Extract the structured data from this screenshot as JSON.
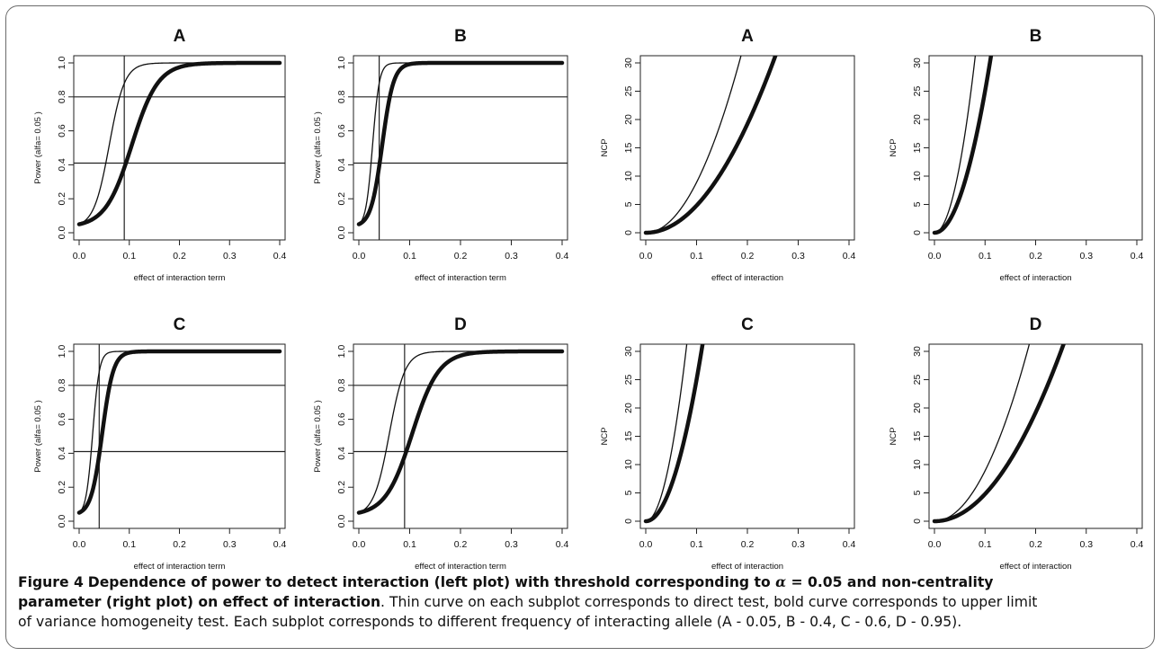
{
  "chart_data": [
    {
      "panel": "power-A",
      "type": "line",
      "title": "A",
      "xlabel": "effect of interaction term",
      "ylabel": "Power (alfa= 0.05 )",
      "xlim": [
        0,
        0.4
      ],
      "ylim": [
        0,
        1.0
      ],
      "xticks": [
        "0.0",
        "0.1",
        "0.2",
        "0.3",
        "0.4"
      ],
      "yticks": [
        "0.0",
        "0.2",
        "0.4",
        "0.6",
        "0.8",
        "1.0"
      ],
      "hlines": [
        0.8,
        0.41
      ],
      "vlines": [
        0.09
      ],
      "series": [
        {
          "style": "thin",
          "midpoint": 0.06,
          "steepness": 65,
          "baseline": 0.05
        },
        {
          "style": "bold",
          "midpoint": 0.105,
          "steepness": 38,
          "baseline": 0.05
        }
      ]
    },
    {
      "panel": "power-B",
      "type": "line",
      "title": "B",
      "xlabel": "effect of interaction term",
      "ylabel": "Power (alfa= 0.05 )",
      "xlim": [
        0,
        0.4
      ],
      "ylim": [
        0,
        1.0
      ],
      "xticks": [
        "0.0",
        "0.1",
        "0.2",
        "0.3",
        "0.4"
      ],
      "yticks": [
        "0.0",
        "0.2",
        "0.4",
        "0.6",
        "0.8",
        "1.0"
      ],
      "hlines": [
        0.8,
        0.41
      ],
      "vlines": [
        0.04
      ],
      "series": [
        {
          "style": "thin",
          "midpoint": 0.027,
          "steepness": 150,
          "baseline": 0.05
        },
        {
          "style": "bold",
          "midpoint": 0.046,
          "steepness": 90,
          "baseline": 0.05
        }
      ]
    },
    {
      "panel": "ncp-A",
      "type": "line",
      "title": "A",
      "xlabel": "effect of interaction",
      "ylabel": "NCP",
      "xlim": [
        0,
        0.4
      ],
      "ylim": [
        0,
        30
      ],
      "xticks": [
        "0.0",
        "0.1",
        "0.2",
        "0.3",
        "0.4"
      ],
      "yticks": [
        "0",
        "5",
        "10",
        "15",
        "20",
        "25",
        "30"
      ],
      "series": [
        {
          "style": "thin",
          "coef": 890
        },
        {
          "style": "bold",
          "coef": 480
        }
      ]
    },
    {
      "panel": "ncp-B",
      "type": "line",
      "title": "B",
      "xlabel": "effect of interaction",
      "ylabel": "NCP",
      "xlim": [
        0,
        0.4
      ],
      "ylim": [
        0,
        30
      ],
      "xticks": [
        "0.0",
        "0.1",
        "0.2",
        "0.3",
        "0.4"
      ],
      "yticks": [
        "0",
        "5",
        "10",
        "15",
        "20",
        "25",
        "30"
      ],
      "series": [
        {
          "style": "thin",
          "coef": 4800
        },
        {
          "style": "bold",
          "coef": 2500
        }
      ]
    },
    {
      "panel": "power-C",
      "type": "line",
      "title": "C",
      "xlabel": "effect of interaction term",
      "ylabel": "Power (alfa= 0.05 )",
      "xlim": [
        0,
        0.4
      ],
      "ylim": [
        0,
        1.0
      ],
      "xticks": [
        "0.0",
        "0.1",
        "0.2",
        "0.3",
        "0.4"
      ],
      "yticks": [
        "0.0",
        "0.2",
        "0.4",
        "0.6",
        "0.8",
        "1.0"
      ],
      "hlines": [
        0.8,
        0.41
      ],
      "vlines": [
        0.04
      ],
      "series": [
        {
          "style": "thin",
          "midpoint": 0.027,
          "steepness": 150,
          "baseline": 0.05
        },
        {
          "style": "bold",
          "midpoint": 0.046,
          "steepness": 90,
          "baseline": 0.05
        }
      ]
    },
    {
      "panel": "power-D",
      "type": "line",
      "title": "D",
      "xlabel": "effect of interaction term",
      "ylabel": "Power (alfa= 0.05 )",
      "xlim": [
        0,
        0.4
      ],
      "ylim": [
        0,
        1.0
      ],
      "xticks": [
        "0.0",
        "0.1",
        "0.2",
        "0.3",
        "0.4"
      ],
      "yticks": [
        "0.0",
        "0.2",
        "0.4",
        "0.6",
        "0.8",
        "1.0"
      ],
      "hlines": [
        0.8,
        0.41
      ],
      "vlines": [
        0.09
      ],
      "series": [
        {
          "style": "thin",
          "midpoint": 0.06,
          "steepness": 65,
          "baseline": 0.05
        },
        {
          "style": "bold",
          "midpoint": 0.105,
          "steepness": 38,
          "baseline": 0.05
        }
      ]
    },
    {
      "panel": "ncp-C",
      "type": "line",
      "title": "C",
      "xlabel": "effect of interaction",
      "ylabel": "NCP",
      "xlim": [
        0,
        0.4
      ],
      "ylim": [
        0,
        30
      ],
      "xticks": [
        "0.0",
        "0.1",
        "0.2",
        "0.3",
        "0.4"
      ],
      "yticks": [
        "0",
        "5",
        "10",
        "15",
        "20",
        "25",
        "30"
      ],
      "series": [
        {
          "style": "thin",
          "coef": 4800
        },
        {
          "style": "bold",
          "coef": 2500
        }
      ]
    },
    {
      "panel": "ncp-D",
      "type": "line",
      "title": "D",
      "xlabel": "effect of interaction",
      "ylabel": "NCP",
      "xlim": [
        0,
        0.4
      ],
      "ylim": [
        0,
        30
      ],
      "xticks": [
        "0.0",
        "0.1",
        "0.2",
        "0.3",
        "0.4"
      ],
      "yticks": [
        "0",
        "5",
        "10",
        "15",
        "20",
        "25",
        "30"
      ],
      "series": [
        {
          "style": "thin",
          "coef": 890
        },
        {
          "style": "bold",
          "coef": 480
        }
      ]
    }
  ],
  "caption": {
    "label": "Figure 4",
    "title_part1": "Dependence of power to detect interaction (left plot) with threshold corresponding to ",
    "alpha_symbol": "α",
    "title_part2": " = 0.05 and non-centrality",
    "title_part3": "parameter (right plot) on effect of interaction",
    "text_line2_rest": ". Thin curve on each subplot corresponds to direct test, bold curve corresponds to upper limit",
    "text_line3": "of variance homogeneity test. Each subplot corresponds to different frequency of interacting allele (A - 0.05, B - 0.4, C - 0.6, D - 0.95)."
  }
}
